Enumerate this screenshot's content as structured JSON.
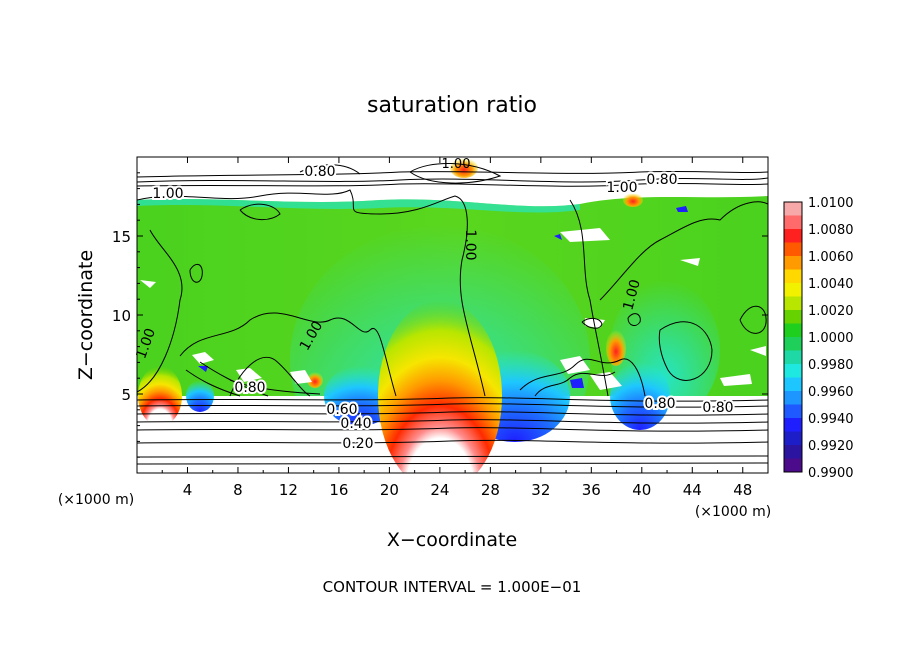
{
  "chart_data": {
    "type": "heatmap",
    "title": "saturation ratio",
    "xlabel": "X−coordinate",
    "ylabel": "Z−coordinate",
    "x_unit_left": "(×1000 m)",
    "x_unit_right": "(×1000 m)",
    "footer": "CONTOUR INTERVAL = 1.000E−01",
    "xlim": [
      0,
      50
    ],
    "ylim": [
      0,
      20
    ],
    "x_ticks": [
      4,
      8,
      12,
      16,
      20,
      24,
      28,
      32,
      36,
      40,
      44,
      48
    ],
    "y_ticks": [
      5,
      10,
      15
    ],
    "contour_interval": 0.1,
    "contour_labels": [
      "0.80",
      "1.00",
      "1.00",
      "1.00",
      "1.00",
      "1.00",
      "1.00",
      "1.00",
      "0.80",
      "0.80",
      "0.80",
      "0.80",
      "0.60",
      "0.40",
      "0.20"
    ],
    "colorbar": {
      "min": 0.99,
      "max": 1.01,
      "step": 0.001,
      "tick_labels": [
        "1.0100",
        "1.0080",
        "1.0060",
        "1.0040",
        "1.0020",
        "1.0000",
        "0.9980",
        "0.9960",
        "0.9940",
        "0.9920",
        "0.9900"
      ],
      "colors": [
        "#f7a8a8",
        "#ff6a6a",
        "#ff2020",
        "#ff5a00",
        "#ff9a00",
        "#ffd800",
        "#f2f200",
        "#b8e600",
        "#66d200",
        "#1ecf1e",
        "#1ecf5a",
        "#1ed8a6",
        "#1ee8e0",
        "#1ec6ff",
        "#1e96ff",
        "#1e5aff",
        "#1e1eff",
        "#1e1ec8",
        "#2a14a0",
        "#4b0b8a"
      ]
    }
  }
}
